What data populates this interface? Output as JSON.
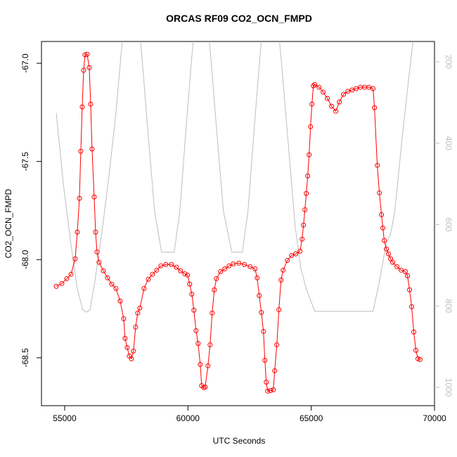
{
  "chart_data": {
    "type": "line",
    "title": "ORCAS RF09 CO2_OCN_FMPD",
    "x_label": "UTC Seconds",
    "y_label": "CO2_OCN_FMPD",
    "xlim": [
      54060,
      70000
    ],
    "xticks": [
      55000,
      60000,
      65000,
      70000
    ],
    "ylim": [
      -68.744,
      -66.889
    ],
    "yticks": [
      {
        "value": -67,
        "label": "-67.0"
      },
      -67.5,
      {
        "value": -68,
        "label": "-68.0"
      },
      -68.5
    ],
    "y2lim": [
      150,
      1045
    ],
    "y2_inverted": true,
    "y2ticks": [
      200,
      400,
      600,
      800,
      1000
    ],
    "y2_color": "#bebebe",
    "series": [
      {
        "color": "#bebebe",
        "axis": "y2",
        "marker": "none",
        "x": [
          54660,
          54943,
          55228,
          55513,
          55740,
          55883,
          56026,
          56225,
          56510,
          56795,
          57080,
          57279,
          57393,
          58020,
          58134,
          58362,
          58647,
          58931,
          59444,
          59672,
          59928,
          60156,
          60270,
          60812,
          60926,
          61154,
          61439,
          61781,
          62208,
          62436,
          62692,
          62920,
          63034,
          63661,
          63775,
          64060,
          64345,
          64573,
          64801,
          65143,
          67507,
          67764,
          68049,
          68220,
          68391,
          68675,
          68960,
          69188
        ],
        "values": [
          325,
          498,
          637,
          758,
          810,
          815,
          810,
          740,
          619,
          481,
          325,
          188,
          117,
          117,
          188,
          360,
          567,
          668,
          668,
          567,
          360,
          188,
          117,
          117,
          188,
          360,
          567,
          668,
          668,
          567,
          360,
          188,
          117,
          117,
          188,
          394,
          602,
          706,
          758,
          813,
          813,
          740,
          645,
          623,
          567,
          394,
          238,
          117
        ]
      },
      {
        "color": "#ff0000",
        "axis": "y",
        "marker": "circle",
        "x": [
          54660,
          54886,
          55086,
          55257,
          55428,
          55513,
          55598,
          55655,
          55712,
          55769,
          55826,
          55912,
          55997,
          56054,
          56111,
          56197,
          56254,
          56311,
          56396,
          56567,
          56738,
          56909,
          57080,
          57251,
          57393,
          57450,
          57536,
          57621,
          57707,
          57792,
          57877,
          57963,
          58049,
          58220,
          58391,
          58561,
          58732,
          58903,
          59103,
          59331,
          59530,
          59701,
          59872,
          59986,
          60071,
          60157,
          60242,
          60328,
          60413,
          60499,
          60556,
          60641,
          60698,
          60812,
          60898,
          60983,
          61069,
          61154,
          61325,
          61496,
          61667,
          61838,
          62066,
          62293,
          62521,
          62721,
          62806,
          62892,
          62977,
          63063,
          63120,
          63177,
          63234,
          63348,
          63462,
          63519,
          63604,
          63690,
          63775,
          63861,
          64032,
          64202,
          64373,
          64544,
          64630,
          64687,
          64744,
          64801,
          64858,
          64915,
          64972,
          65029,
          65086,
          65143,
          65314,
          65484,
          65655,
          65826,
          65997,
          66140,
          66311,
          66482,
          66653,
          66824,
          66995,
          67165,
          67336,
          67507,
          67565,
          67679,
          67764,
          67849,
          67906,
          67963,
          68049,
          68134,
          68220,
          68305,
          68476,
          68647,
          68818,
          68903,
          68989,
          69074,
          69160,
          69245,
          69331,
          69416
        ],
        "values": [
          -68.136,
          -68.122,
          -68.097,
          -68.075,
          -67.996,
          -67.86,
          -67.688,
          -67.448,
          -67.222,
          -67.036,
          -66.957,
          -66.954,
          -67.022,
          -67.208,
          -67.437,
          -67.681,
          -67.86,
          -67.961,
          -68.014,
          -68.057,
          -68.093,
          -68.125,
          -68.147,
          -68.211,
          -68.301,
          -68.401,
          -68.448,
          -68.491,
          -68.505,
          -68.466,
          -68.344,
          -68.272,
          -68.247,
          -68.147,
          -68.1,
          -68.075,
          -68.054,
          -68.032,
          -68.025,
          -68.025,
          -68.039,
          -68.057,
          -68.072,
          -68.079,
          -68.125,
          -68.176,
          -68.258,
          -68.362,
          -68.427,
          -68.534,
          -68.642,
          -68.652,
          -68.649,
          -68.541,
          -68.434,
          -68.272,
          -68.154,
          -68.097,
          -68.061,
          -68.047,
          -68.032,
          -68.022,
          -68.018,
          -68.025,
          -68.036,
          -68.047,
          -68.093,
          -68.183,
          -68.269,
          -68.366,
          -68.513,
          -68.624,
          -68.67,
          -68.667,
          -68.663,
          -68.566,
          -68.434,
          -68.255,
          -68.104,
          -68.054,
          -68.004,
          -67.979,
          -67.971,
          -67.957,
          -67.896,
          -67.824,
          -67.746,
          -67.663,
          -67.574,
          -67.466,
          -67.323,
          -67.208,
          -67.115,
          -67.108,
          -67.122,
          -67.147,
          -67.179,
          -67.219,
          -67.244,
          -67.197,
          -67.158,
          -67.143,
          -67.136,
          -67.129,
          -67.122,
          -67.122,
          -67.122,
          -67.129,
          -67.226,
          -67.52,
          -67.66,
          -67.771,
          -67.839,
          -67.903,
          -67.946,
          -67.971,
          -67.996,
          -68.014,
          -68.036,
          -68.054,
          -68.061,
          -68.082,
          -68.154,
          -68.24,
          -68.369,
          -68.462,
          -68.505,
          -68.509
        ]
      }
    ]
  }
}
